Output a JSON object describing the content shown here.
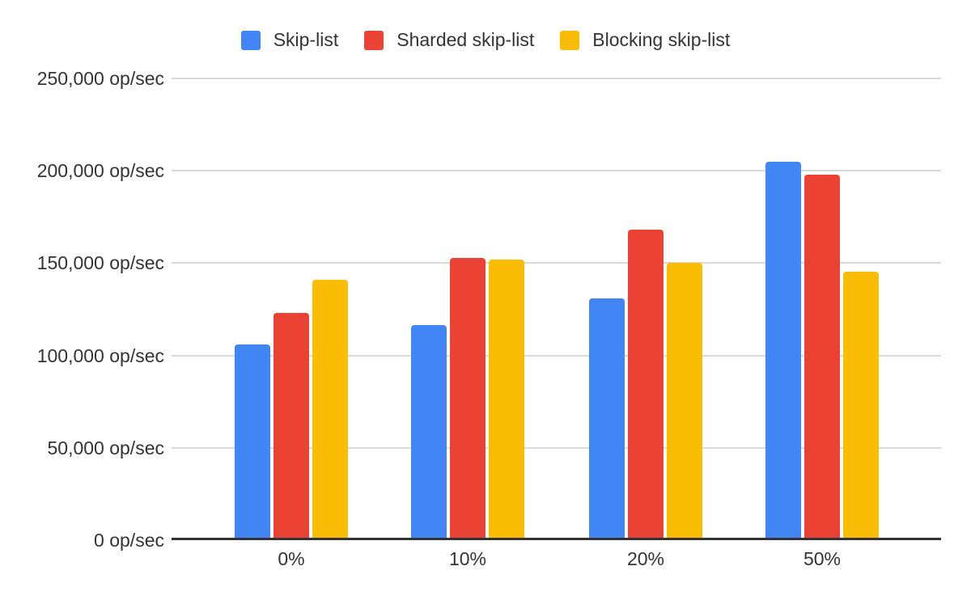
{
  "chart_data": {
    "type": "bar",
    "title": "",
    "categories": [
      "0%",
      "10%",
      "20%",
      "50%"
    ],
    "series": [
      {
        "name": "Skip-list",
        "color": "#4285F4",
        "values": [
          106000,
          116500,
          131000,
          205000
        ]
      },
      {
        "name": "Sharded skip-list",
        "color": "#EA4335",
        "values": [
          123000,
          153000,
          168000,
          198000
        ]
      },
      {
        "name": "Blocking skip-list",
        "color": "#FBBC04",
        "values": [
          141000,
          152000,
          150000,
          145500
        ]
      }
    ],
    "xlabel": "",
    "ylabel": "",
    "ylim": [
      0,
      250000
    ],
    "y_tick_step": 50000,
    "y_ticks": [
      {
        "value": 0,
        "label": "0 op/sec"
      },
      {
        "value": 50000,
        "label": "50,000 op/sec"
      },
      {
        "value": 100000,
        "label": "100,000 op/sec"
      },
      {
        "value": 150000,
        "label": "150,000 op/sec"
      },
      {
        "value": 200000,
        "label": "200,000 op/sec"
      },
      {
        "value": 250000,
        "label": "250,000 op/sec"
      }
    ],
    "grid": true,
    "legend_position": "top"
  },
  "colors": {
    "background": "#ffffff",
    "gridline": "#d9d9d9",
    "axis_line": "#333333",
    "text": "#333333"
  }
}
